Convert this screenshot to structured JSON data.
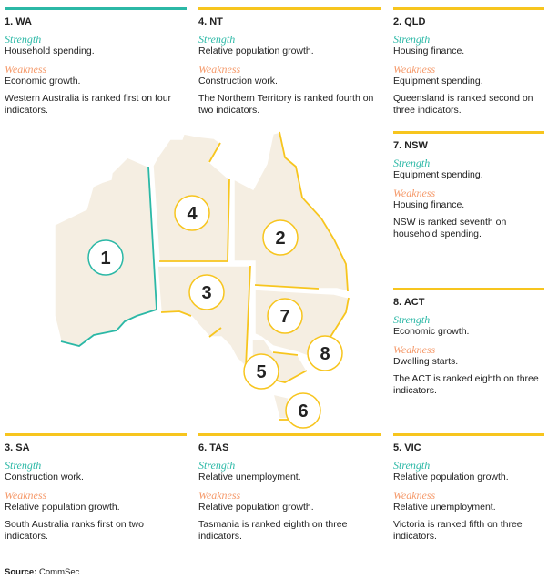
{
  "colors": {
    "teal": "#2bb8a6",
    "yellow": "#f7c51e",
    "orange": "#f59a6b",
    "land": "#f5eee2"
  },
  "labels": {
    "strength": "Strength",
    "weakness": "Weakness"
  },
  "cards": [
    {
      "id": "wa",
      "title": "1. WA",
      "strength": "Household spending.",
      "weakness": "Economic growth.",
      "note": "Western Australia is ranked first on four indicators.",
      "accent": "teal"
    },
    {
      "id": "nt",
      "title": "4. NT",
      "strength": "Relative population growth.",
      "weakness": "Construction work.",
      "note": "The Northern Territory is ranked fourth on two indicators.",
      "accent": "yellow"
    },
    {
      "id": "qld",
      "title": "2. QLD",
      "strength": "Housing finance.",
      "weakness": "Equipment spending.",
      "note": "Queensland is ranked second on three indicators.",
      "accent": "yellow"
    },
    {
      "id": "nsw",
      "title": "7. NSW",
      "strength": "Equipment spending.",
      "weakness": "Housing finance.",
      "note": "NSW is ranked seventh on household spending.",
      "accent": "yellow"
    },
    {
      "id": "act",
      "title": "8. ACT",
      "strength": "Economic growth.",
      "weakness": "Dwelling starts.",
      "note": "The ACT is ranked eighth on three indicators.",
      "accent": "yellow"
    },
    {
      "id": "sa",
      "title": "3. SA",
      "strength": "Construction work.",
      "weakness": "Relative population growth.",
      "note": "South Australia ranks first on two indicators.",
      "accent": "yellow"
    },
    {
      "id": "tas",
      "title": "6. TAS",
      "strength": "Relative unemployment.",
      "weakness": "Relative population growth.",
      "note": "Tasmania is ranked eighth on three indicators.",
      "accent": "yellow"
    },
    {
      "id": "vic",
      "title": "5. VIC",
      "strength": "Relative population growth.",
      "weakness": "Relative unemployment.",
      "note": "Victoria is ranked fifth on three indicators.",
      "accent": "yellow"
    }
  ],
  "map": {
    "ranks": {
      "wa": "1",
      "nt": "4",
      "qld": "2",
      "sa": "3",
      "nsw": "7",
      "act": "8",
      "vic": "5",
      "tas": "6"
    }
  },
  "source": {
    "label": "Source:",
    "value": "CommSec"
  }
}
